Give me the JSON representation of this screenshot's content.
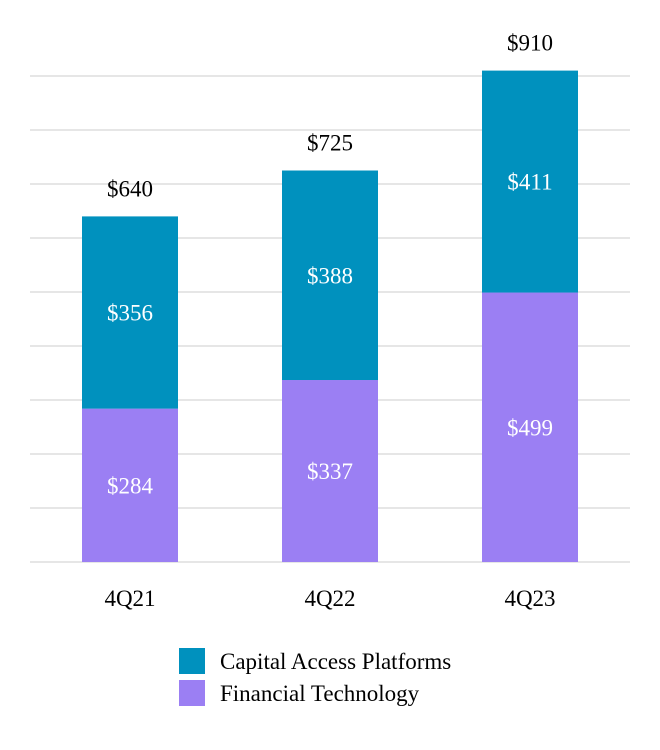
{
  "chart_data": {
    "type": "bar",
    "stacked": true,
    "categories": [
      "4Q21",
      "4Q22",
      "4Q23"
    ],
    "series": [
      {
        "name": "Financial Technology",
        "values": [
          284,
          337,
          499
        ],
        "labels": [
          "$284",
          "$337",
          "$499"
        ],
        "color": "#9B7FF3"
      },
      {
        "name": "Capital Access Platforms",
        "values": [
          356,
          388,
          411
        ],
        "labels": [
          "$356",
          "$388",
          "$411"
        ],
        "color": "#0091BE"
      }
    ],
    "totals": [
      640,
      725,
      910
    ],
    "total_labels": [
      "$640",
      "$725",
      "$910"
    ],
    "ylim": [
      0,
      1000
    ],
    "grid": true,
    "legend_position": "bottom",
    "legend_order": [
      "Capital Access Platforms",
      "Financial Technology"
    ]
  }
}
